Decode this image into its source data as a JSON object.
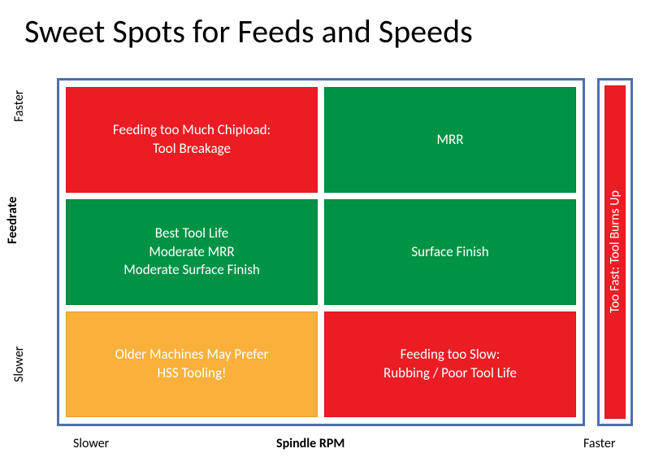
{
  "title": "Sweet Spots for Feeds and Speeds",
  "y_axis": {
    "label": "Feedrate",
    "low": "Slower",
    "high": "Faster"
  },
  "x_axis": {
    "label": "Spindle RPM",
    "low": "Slower",
    "high": "Faster"
  },
  "colors": {
    "red": "#ec1c24",
    "green": "#009245",
    "orange": "#fbb03b",
    "border": "#4f6fa8",
    "background": "#ffffff",
    "text_light": "#ffffff",
    "text_dark": "#000000"
  },
  "cells": [
    {
      "key": "top_left",
      "text": "Feeding too Much Chipload:\nTool Breakage",
      "color": "#ec1c24"
    },
    {
      "key": "top_right",
      "text": "MRR",
      "color": "#009245"
    },
    {
      "key": "mid_left",
      "text": "Best Tool Life\nModerate MRR\nModerate Surface Finish",
      "color": "#009245"
    },
    {
      "key": "mid_right",
      "text": "Surface Finish",
      "color": "#009245"
    },
    {
      "key": "bot_left",
      "text": "Older Machines May Prefer\nHSS Tooling!",
      "color": "#fbb03b"
    },
    {
      "key": "bot_right",
      "text": "Feeding too Slow:\nRubbing / Poor Tool Life",
      "color": "#ec1c24"
    }
  ],
  "side": {
    "text": "Too Fast: Tool Burns Up",
    "color": "#ec1c24"
  },
  "fontsize": {
    "title": 40,
    "cell": 17,
    "axis": 16
  }
}
